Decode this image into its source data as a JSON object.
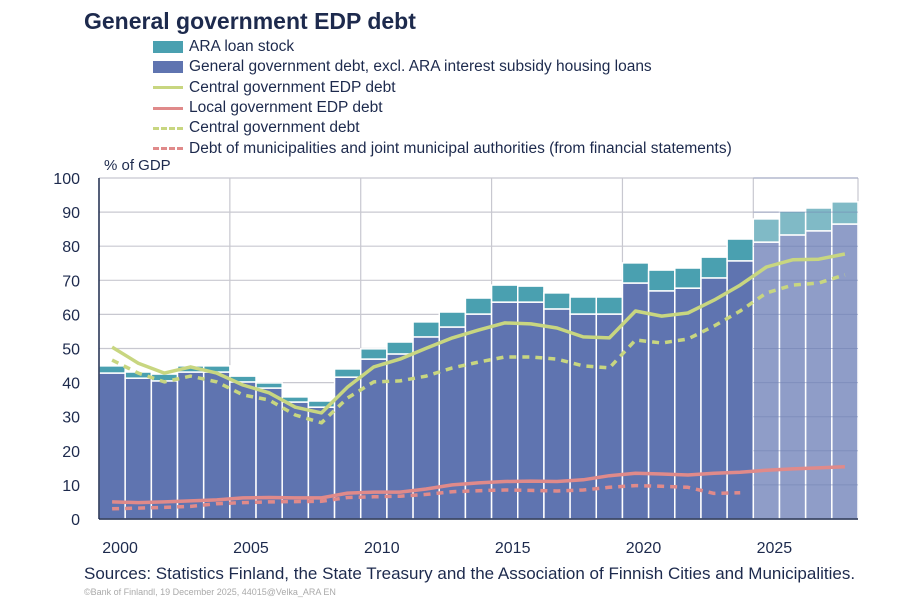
{
  "chart_data": {
    "type": "bar",
    "title": "General government EDP debt",
    "ylabel": "% of GDP",
    "ylim": [
      0,
      100
    ],
    "yticks": [
      0,
      10,
      20,
      30,
      40,
      50,
      60,
      70,
      80,
      90,
      100
    ],
    "xtick_labels": [
      "2000",
      "2005",
      "2010",
      "2015",
      "2020",
      "2025"
    ],
    "forecast_from": 2025,
    "grid": true,
    "legend_placement": "top",
    "colors": {
      "ara": "#4aa0b0",
      "gg": "#5f74b0",
      "ara_forecast": "#80bac6",
      "gg_forecast": "#8f9dc8",
      "central_edp": "#c8d680",
      "local_edp": "#e08a8a"
    },
    "x": [
      2000,
      2001,
      2002,
      2003,
      2004,
      2005,
      2006,
      2007,
      2008,
      2009,
      2010,
      2011,
      2012,
      2013,
      2014,
      2015,
      2016,
      2017,
      2018,
      2019,
      2020,
      2021,
      2022,
      2023,
      2024,
      2025,
      2026,
      2027,
      2028
    ],
    "series": [
      {
        "name": "ARA loan stock",
        "kind": "bar-stack",
        "values": [
          2.1,
          1.8,
          2.0,
          1.8,
          1.8,
          1.7,
          1.5,
          1.5,
          1.8,
          2.4,
          3.0,
          3.5,
          4.4,
          4.4,
          4.7,
          5.0,
          4.7,
          4.7,
          5.0,
          5.0,
          5.9,
          6.1,
          5.9,
          6.1,
          6.4,
          6.8,
          7.0,
          6.7,
          6.5
        ]
      },
      {
        "name": "General government debt, excl. ARA interest subsidy housing loans",
        "kind": "bar",
        "values": [
          42.8,
          41.3,
          40.5,
          43.1,
          43.1,
          40.2,
          38.4,
          34.3,
          32.8,
          41.6,
          46.9,
          48.4,
          53.4,
          56.3,
          60.1,
          63.6,
          63.6,
          61.6,
          60.1,
          60.1,
          69.2,
          66.9,
          67.7,
          70.7,
          75.7,
          81.2,
          83.3,
          84.5,
          86.5
        ]
      },
      {
        "name": "Central government EDP debt",
        "kind": "line",
        "values": [
          50.4,
          45.7,
          42.8,
          44.6,
          42.8,
          39.3,
          37.0,
          32.8,
          31.1,
          38.7,
          44.6,
          46.9,
          50.1,
          53.1,
          55.4,
          57.5,
          57.2,
          56.0,
          53.4,
          53.1,
          61.0,
          59.5,
          60.4,
          64.2,
          68.6,
          73.9,
          76.0,
          76.2,
          77.7
        ]
      },
      {
        "name": "Local government EDP debt",
        "kind": "line",
        "values": [
          5.0,
          4.8,
          5.0,
          5.3,
          5.6,
          6.2,
          6.3,
          6.2,
          6.2,
          7.6,
          7.9,
          7.9,
          8.8,
          10.0,
          10.6,
          11.0,
          11.1,
          11.0,
          11.5,
          12.7,
          13.4,
          13.2,
          12.9,
          13.4,
          13.7,
          14.3,
          14.7,
          15.0,
          15.3
        ]
      },
      {
        "name": "Central government debt",
        "kind": "dashed",
        "values": [
          46.6,
          42.8,
          40.2,
          41.9,
          40.2,
          36.4,
          34.9,
          30.5,
          28.2,
          35.5,
          40.2,
          40.5,
          41.9,
          44.3,
          46.0,
          47.5,
          47.5,
          46.9,
          44.9,
          44.3,
          52.5,
          51.6,
          52.8,
          56.6,
          61.0,
          66.3,
          68.6,
          69.2,
          71.6
        ]
      },
      {
        "name": "Debt of municipalities and joint  municipal authorities (from financial statements)",
        "kind": "dashed",
        "values": [
          3.0,
          3.2,
          3.4,
          3.7,
          4.5,
          4.8,
          5.0,
          5.1,
          5.2,
          6.3,
          6.5,
          6.7,
          7.2,
          8.0,
          8.3,
          8.5,
          8.4,
          8.2,
          8.5,
          9.3,
          9.8,
          9.6,
          9.3,
          7.5,
          7.7,
          null,
          null,
          null,
          null
        ]
      }
    ]
  },
  "sources": "Sources: Statistics Finland, the State Treasury and the Association of Finnish Cities and Municipalities.",
  "footnote": "©Bank of Finlandl, 19 December  2025, 44015@Velka_ARA EN"
}
